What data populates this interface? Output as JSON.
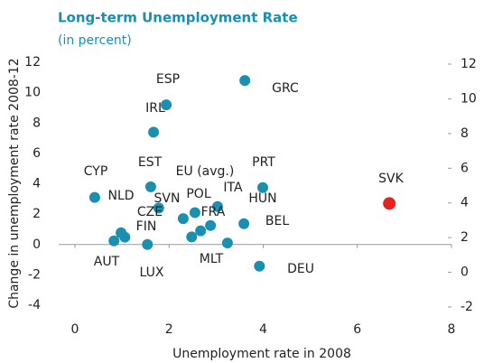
{
  "chart_data": {
    "type": "scatter",
    "title": "Long-term Unemployment Rate",
    "subtitle": "(in percent)",
    "x_label": "Unemployment rate in 2008",
    "y_label": "Change in unemployment rate 2008-12",
    "xlim": [
      0,
      8
    ],
    "xticks": [
      0,
      2,
      4,
      6,
      8
    ],
    "ylim": [
      -4,
      12
    ],
    "yticks": [
      -4,
      -2,
      0,
      2,
      4,
      6,
      8,
      10,
      12
    ],
    "y2lim": [
      -2,
      12
    ],
    "y2ticks": [
      -2,
      0,
      2,
      4,
      6,
      8,
      10,
      12
    ],
    "series": [
      {
        "color": "#1a8fb0",
        "x": [
          0.42,
          0.83,
          0.98,
          1.06,
          1.54,
          1.78,
          1.61,
          1.94,
          1.67,
          2.3,
          2.67,
          2.55,
          2.48,
          2.88,
          3.03,
          3.24,
          3.59,
          3.61,
          3.99,
          3.92
        ],
        "values": [
          3.1,
          0.24,
          0.77,
          0.48,
          0.0,
          2.4,
          3.8,
          9.2,
          7.4,
          1.7,
          0.9,
          2.1,
          0.5,
          1.25,
          2.5,
          0.1,
          1.37,
          10.8,
          3.75,
          -1.43
        ]
      },
      {
        "color": "#e8231f",
        "x": [
          6.68
        ],
        "values": [
          2.7
        ]
      }
    ],
    "annotations": [
      "ESP",
      "GRC",
      "IRL",
      "EST",
      "EU (avg.)",
      "PRT",
      "CYP",
      "SVK",
      "NLD",
      "SVN",
      "POL",
      "ITA",
      "HUN",
      "CZE",
      "FRA",
      "FIN",
      "BEL",
      "AUT",
      "MLT",
      "LUX",
      "DEU"
    ]
  }
}
